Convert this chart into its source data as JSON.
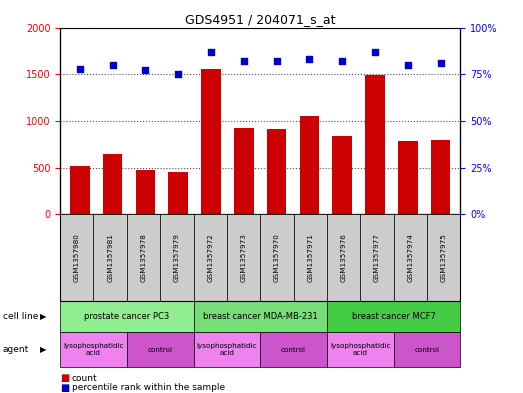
{
  "title": "GDS4951 / 204071_s_at",
  "samples": [
    "GSM1357980",
    "GSM1357981",
    "GSM1357978",
    "GSM1357979",
    "GSM1357972",
    "GSM1357973",
    "GSM1357970",
    "GSM1357971",
    "GSM1357976",
    "GSM1357977",
    "GSM1357974",
    "GSM1357975"
  ],
  "counts": [
    520,
    640,
    475,
    450,
    1560,
    920,
    910,
    1050,
    840,
    1490,
    780,
    790
  ],
  "percentiles": [
    78,
    80,
    77,
    75,
    87,
    82,
    82,
    83,
    82,
    87,
    80,
    81
  ],
  "ylim_left": [
    0,
    2000
  ],
  "ylim_right": [
    0,
    100
  ],
  "yticks_left": [
    0,
    500,
    1000,
    1500,
    2000
  ],
  "yticks_right": [
    0,
    25,
    50,
    75,
    100
  ],
  "cell_line_groups": [
    {
      "label": "prostate cancer PC3",
      "start": 0,
      "end": 3,
      "color": "#90EE90"
    },
    {
      "label": "breast cancer MDA-MB-231",
      "start": 4,
      "end": 7,
      "color": "#77DD77"
    },
    {
      "label": "breast cancer MCF7",
      "start": 8,
      "end": 11,
      "color": "#44CC44"
    }
  ],
  "agent_groups": [
    {
      "label": "lysophosphatidic\nacid",
      "start": 0,
      "end": 1,
      "color": "#EE82EE"
    },
    {
      "label": "control",
      "start": 2,
      "end": 3,
      "color": "#CC55CC"
    },
    {
      "label": "lysophosphatidic\nacid",
      "start": 4,
      "end": 5,
      "color": "#EE82EE"
    },
    {
      "label": "control",
      "start": 6,
      "end": 7,
      "color": "#CC55CC"
    },
    {
      "label": "lysophosphatidic\nacid",
      "start": 8,
      "end": 9,
      "color": "#EE82EE"
    },
    {
      "label": "control",
      "start": 10,
      "end": 11,
      "color": "#CC55CC"
    }
  ],
  "bar_color": "#CC0000",
  "dot_color": "#0000CC",
  "background_color": "#FFFFFF",
  "sample_box_color": "#CCCCCC",
  "legend_count_color": "#CC0000",
  "legend_dot_color": "#0000CC",
  "fig_width": 5.23,
  "fig_height": 3.93,
  "dpi": 100
}
